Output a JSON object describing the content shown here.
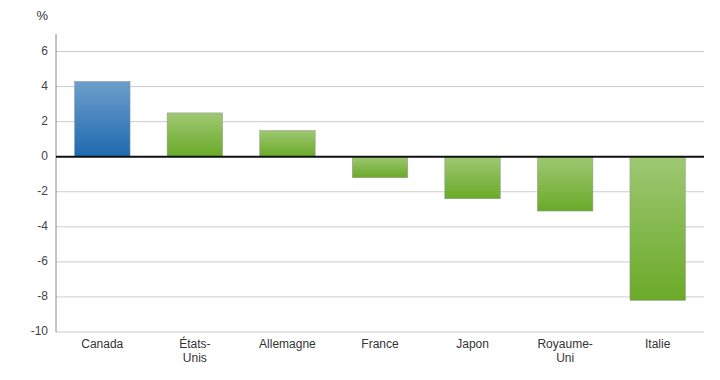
{
  "chart_data": {
    "type": "bar",
    "categories": [
      "Canada",
      "États-\nUnis",
      "Allemagne",
      "France",
      "Japon",
      "Royaume-\nUni",
      "Italie"
    ],
    "values": [
      4.3,
      2.5,
      1.5,
      -1.2,
      -2.4,
      -3.1,
      -8.2
    ],
    "colors": [
      "#1e6ab0",
      "#6aaa28",
      "#6aaa28",
      "#6aaa28",
      "#6aaa28",
      "#6aaa28",
      "#6aaa28"
    ],
    "ylabel": "%",
    "ylim": [
      -10,
      7
    ],
    "yticks": [
      -10,
      -8,
      -6,
      -4,
      -2,
      0,
      2,
      4,
      6
    ],
    "grid": true
  }
}
